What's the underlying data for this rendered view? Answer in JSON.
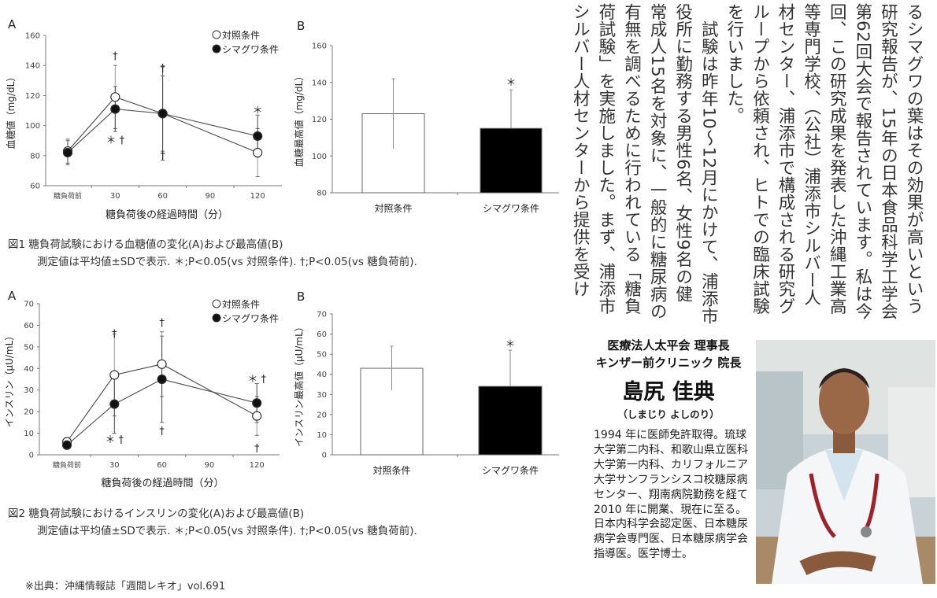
{
  "article": {
    "columns": [
      "るシマグワの葉はその効果が高いという",
      "研究報告が、15年の日本食品科学工学会",
      "第62回大会で報告されています。私は今",
      "回、この研究成果を発表した沖縄工業高",
      "等専門学校、（公社）浦添市シルバー人",
      "材センター、浦添市で構成される研究グ",
      "ループから依頼され、ヒトでの臨床試験",
      "を行いました。",
      "　試験は昨年10～12月にかけて、浦添市",
      "役所に勤務する男性6名、女性9名の健",
      "常成人15名を対象に、一般的に糖尿病の",
      "有無を調べるために行われている「糖負",
      "荷試験」を実施しました。まず、浦添市",
      "シルバー人材センターから提供を受け"
    ]
  },
  "profile": {
    "org1": "医療法人太平会 理事長",
    "org2": "キンザー前クリニック 院長",
    "name": "島尻 佳典",
    "kana": "（しまじり よしのり）",
    "bio": "1994 年に医師免許取得。琉球大学第二内科、和歌山県立医科大学第一内科、カリフォルニア大学サンフランシスコ校糖尿病センター、翔南病院勤務を経て 2010 年に開業、現在に至る。日本内科学会認定医、日本糖尿病学会専門医、日本糖尿病学会指導医。医学博士。"
  },
  "figure1": {
    "caption": "図1  糖負荷試験における血糖値の変化(A)および最高値(B)",
    "note": "測定値は平均値±SDで表示. ＊;P<0.05(vs 対照条件). †;P<0.05(vs 糖負荷前)."
  },
  "figure2": {
    "caption": "図2  糖負荷試験におけるインスリンの変化(A)および最高値(B)",
    "note": "測定値は平均値±SDで表示. ＊;P<0.05(vs 対照条件). †;P<0.05(vs 糖負荷前)."
  },
  "source": "※出典：沖縄情報誌「週間レキオ」vol.691",
  "chart_data": [
    {
      "id": "fig1A",
      "type": "line",
      "panel": "A",
      "xlabel": "糖負荷後の経過時間（分）",
      "ylabel": "血糖値（mg/dL）",
      "categories": [
        "糖負荷前",
        "30",
        "60",
        "90",
        "120"
      ],
      "ylim": [
        60,
        160
      ],
      "yticks": [
        60,
        80,
        100,
        120,
        140,
        160
      ],
      "legend_position": "top-right",
      "series": [
        {
          "name": "対照条件",
          "marker": "open",
          "values": [
            83,
            119,
            108,
            null,
            82
          ],
          "sd": [
            8,
            21,
            25,
            null,
            16
          ]
        },
        {
          "name": "シマグワ条件",
          "marker": "filled",
          "values": [
            82,
            111,
            108,
            null,
            93
          ],
          "sd": [
            8,
            15,
            31,
            null,
            14
          ]
        }
      ],
      "annotations": [
        {
          "category": 1,
          "y": 146,
          "text": "†"
        },
        {
          "category": 1,
          "y": 90,
          "text": "＊ †"
        },
        {
          "category": 2,
          "y": 138,
          "text": "†"
        },
        {
          "category": 2,
          "y": 80,
          "text": "†"
        },
        {
          "category": 4,
          "y": 110,
          "text": "＊"
        }
      ]
    },
    {
      "id": "fig1B",
      "type": "bar",
      "panel": "B",
      "ylabel": "血糖最高値（mg/dL）",
      "categories": [
        "対照条件",
        "シマグワ条件"
      ],
      "values": [
        123,
        115
      ],
      "sd": [
        19,
        21
      ],
      "fill": [
        "#ffffff",
        "#000000"
      ],
      "ylim": [
        80,
        160
      ],
      "yticks": [
        80,
        100,
        120,
        140,
        160
      ],
      "annotations": [
        {
          "category": 1,
          "y": 140,
          "text": "＊"
        }
      ]
    },
    {
      "id": "fig2A",
      "type": "line",
      "panel": "A",
      "xlabel": "糖負荷後の経過時間（分）",
      "ylabel": "インスリン（μU/mL）",
      "categories": [
        "糖負荷前",
        "30",
        "60",
        "90",
        "120"
      ],
      "ylim": [
        0,
        70
      ],
      "yticks": [
        0,
        10,
        20,
        30,
        40,
        50,
        60,
        70
      ],
      "legend_position": "top-right",
      "series": [
        {
          "name": "対照条件",
          "marker": "open",
          "values": [
            6,
            37,
            42,
            null,
            18
          ],
          "sd": [
            2,
            19,
            15,
            null,
            9
          ]
        },
        {
          "name": "シマグワ条件",
          "marker": "filled",
          "values": [
            4.5,
            23.5,
            35,
            null,
            24
          ],
          "sd": [
            2,
            13.5,
            20,
            null,
            9
          ]
        }
      ],
      "annotations": [
        {
          "category": 1,
          "y": 56,
          "text": "†"
        },
        {
          "category": 1,
          "y": 7,
          "text": "＊ †"
        },
        {
          "category": 2,
          "y": 61,
          "text": "†"
        },
        {
          "category": 2,
          "y": 11,
          "text": "†"
        },
        {
          "category": 4,
          "y": 35,
          "text": "＊ †"
        },
        {
          "category": 4,
          "y": 3,
          "text": "†"
        }
      ]
    },
    {
      "id": "fig2B",
      "type": "bar",
      "panel": "B",
      "ylabel": "インスリン最高値（μU/mL）",
      "categories": [
        "対照条件",
        "シマグワ条件"
      ],
      "values": [
        43,
        34
      ],
      "sd": [
        11,
        18
      ],
      "fill": [
        "#ffffff",
        "#000000"
      ],
      "ylim": [
        0,
        70
      ],
      "yticks": [
        0,
        10,
        20,
        30,
        40,
        50,
        60,
        70
      ],
      "annotations": [
        {
          "category": 1,
          "y": 55,
          "text": "＊"
        }
      ]
    }
  ]
}
